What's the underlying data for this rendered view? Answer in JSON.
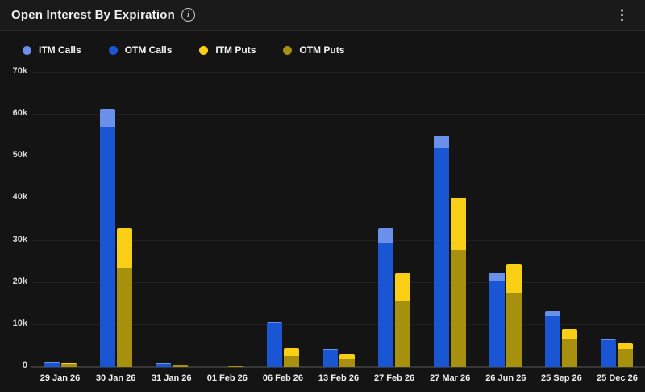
{
  "header": {
    "title": "Open Interest By Expiration",
    "info_icon": "info-circle",
    "menu_icon": "kebab-vertical",
    "menu_glyph": "⋮"
  },
  "legend": [
    {
      "label": "ITM Calls",
      "color": "#6A90EC"
    },
    {
      "label": "OTM Calls",
      "color": "#1A55D4"
    },
    {
      "label": "ITM Puts",
      "color": "#F9CF15"
    },
    {
      "label": "OTM Puts",
      "color": "#A8900F"
    }
  ],
  "colors": {
    "background": "#141414",
    "header_background": "#1a1a1a",
    "gridline": "#1f1f1f",
    "axis": "#383838",
    "itm_calls": "#6A90EC",
    "otm_calls": "#1A55D4",
    "itm_puts": "#F9CF15",
    "otm_puts": "#A8900F"
  },
  "chart_data": {
    "type": "bar",
    "stacked": true,
    "title": "Open Interest By Expiration",
    "categories": [
      "29 Jan 26",
      "30 Jan 26",
      "31 Jan 26",
      "01 Feb 26",
      "06 Feb 26",
      "13 Feb 26",
      "27 Feb 26",
      "27 Mar 26",
      "26 Jun 26",
      "25 Sep 26",
      "25 Dec 26"
    ],
    "series": [
      {
        "name": "ITM Calls",
        "color": "#6A90EC",
        "values": [
          100,
          4200,
          100,
          0,
          300,
          300,
          3500,
          2900,
          1800,
          1200,
          400
        ]
      },
      {
        "name": "OTM Calls",
        "color": "#1A55D4",
        "values": [
          900,
          57200,
          800,
          0,
          10400,
          4000,
          29500,
          52100,
          20600,
          12000,
          6300
        ]
      },
      {
        "name": "ITM Puts",
        "color": "#F9CF15",
        "values": [
          100,
          9400,
          100,
          0,
          1800,
          1100,
          6500,
          12500,
          6900,
          2300,
          1500
        ]
      },
      {
        "name": "OTM Puts",
        "color": "#A8900F",
        "values": [
          700,
          23600,
          300,
          200,
          2700,
          1900,
          15800,
          27800,
          17700,
          6700,
          4300
        ]
      }
    ],
    "stacks": [
      {
        "name": "calls",
        "order_bottom_to_top": [
          "OTM Calls",
          "ITM Calls"
        ]
      },
      {
        "name": "puts",
        "order_bottom_to_top": [
          "OTM Puts",
          "ITM Puts"
        ]
      }
    ],
    "xlabel": "",
    "ylabel": "",
    "ylim": [
      0,
      70000
    ],
    "ytick_labels": [
      "0",
      "10k",
      "20k",
      "30k",
      "40k",
      "50k",
      "60k",
      "70k"
    ],
    "grid": true,
    "legend_position": "top-left"
  }
}
